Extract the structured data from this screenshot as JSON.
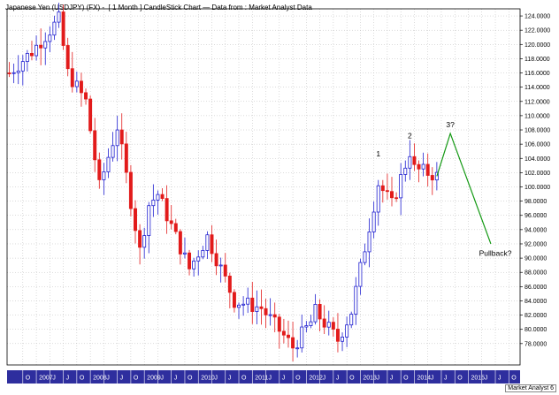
{
  "chart_data": {
    "type": "candlestick",
    "title": "Japanese Yen (USDJPY) (FX) -  [ 1 Month ] CandleStick Chart — Data from : Market Analyst Data",
    "brand": "Market Analyst 6",
    "ylim": [
      75.0,
      125.0
    ],
    "y_ticks": [
      "78.0000",
      "80.0000",
      "82.0000",
      "84.0000",
      "86.0000",
      "88.0000",
      "90.0000",
      "92.0000",
      "94.0000",
      "96.0000",
      "98.0000",
      "100.0000",
      "102.0000",
      "104.0000",
      "106.0000",
      "108.0000",
      "110.0000",
      "112.0000",
      "114.0000",
      "116.0000",
      "118.0000",
      "120.0000",
      "122.0000",
      "124.0000"
    ],
    "x_start": "2006-07",
    "x_end": "2015-12",
    "x_ticks": [
      {
        "label": "O",
        "date": "2006-10"
      },
      {
        "label": "2007",
        "date": "2007-01"
      },
      {
        "label": "J",
        "date": "2007-04"
      },
      {
        "label": "J",
        "date": "2007-07"
      },
      {
        "label": "O",
        "date": "2007-10"
      },
      {
        "label": "2008",
        "date": "2008-01"
      },
      {
        "label": "J",
        "date": "2008-04"
      },
      {
        "label": "J",
        "date": "2008-07"
      },
      {
        "label": "O",
        "date": "2008-10"
      },
      {
        "label": "2009",
        "date": "2009-01"
      },
      {
        "label": "J",
        "date": "2009-04"
      },
      {
        "label": "J",
        "date": "2009-07"
      },
      {
        "label": "O",
        "date": "2009-10"
      },
      {
        "label": "2010",
        "date": "2010-01"
      },
      {
        "label": "J",
        "date": "2010-04"
      },
      {
        "label": "J",
        "date": "2010-07"
      },
      {
        "label": "O",
        "date": "2010-10"
      },
      {
        "label": "2011",
        "date": "2011-01"
      },
      {
        "label": "J",
        "date": "2011-04"
      },
      {
        "label": "J",
        "date": "2011-07"
      },
      {
        "label": "O",
        "date": "2011-10"
      },
      {
        "label": "2012",
        "date": "2012-01"
      },
      {
        "label": "J",
        "date": "2012-04"
      },
      {
        "label": "J",
        "date": "2012-07"
      },
      {
        "label": "O",
        "date": "2012-10"
      },
      {
        "label": "2013",
        "date": "2013-01"
      },
      {
        "label": "J",
        "date": "2013-04"
      },
      {
        "label": "J",
        "date": "2013-07"
      },
      {
        "label": "O",
        "date": "2013-10"
      },
      {
        "label": "2014",
        "date": "2014-01"
      },
      {
        "label": "J",
        "date": "2014-04"
      },
      {
        "label": "J",
        "date": "2014-07"
      },
      {
        "label": "O",
        "date": "2014-10"
      },
      {
        "label": "2015",
        "date": "2015-01"
      },
      {
        "label": "J",
        "date": "2015-04"
      },
      {
        "label": "J",
        "date": "2015-07"
      },
      {
        "label": "O",
        "date": "2015-10"
      }
    ],
    "anchors": [
      [
        "2006-07",
        116.0
      ],
      [
        "2006-12",
        119.0
      ],
      [
        "2007-06",
        123.5
      ],
      [
        "2007-08",
        116.0
      ],
      [
        "2007-12",
        112.0
      ],
      [
        "2008-03",
        100.0
      ],
      [
        "2008-07",
        108.5
      ],
      [
        "2008-12",
        91.0
      ],
      [
        "2009-02",
        97.5
      ],
      [
        "2009-04",
        99.0
      ],
      [
        "2009-11",
        88.5
      ],
      [
        "2010-03",
        93.0
      ],
      [
        "2010-09",
        84.0
      ],
      [
        "2011-03",
        83.0
      ],
      [
        "2011-10",
        77.5
      ],
      [
        "2012-02",
        81.0
      ],
      [
        "2012-03",
        82.5
      ],
      [
        "2012-08",
        78.5
      ],
      [
        "2012-11",
        82.5
      ],
      [
        "2013-05",
        100.5
      ],
      [
        "2013-08",
        97.5
      ],
      [
        "2013-12",
        105.0
      ],
      [
        "2014-01",
        102.5
      ],
      [
        "2014-05",
        101.8
      ],
      [
        "2014-06",
        101.5
      ]
    ],
    "annotations": [
      {
        "label": "1",
        "date": "2013-05",
        "value": 104.3
      },
      {
        "label": "2",
        "date": "2013-12",
        "value": 106.8
      },
      {
        "label": "3?",
        "date": "2014-09",
        "value": 108.4
      },
      {
        "label": "Pullback?",
        "date": "2015-07",
        "value": 90.3
      }
    ],
    "projection": [
      [
        "2014-06",
        101.5
      ],
      [
        "2014-09",
        107.5
      ],
      [
        "2015-06",
        92.0
      ]
    ],
    "colors": {
      "up": "#1f1fd0",
      "down": "#e21b1b",
      "projection": "#139913",
      "grid": "#b8b8b8",
      "axis_bg": "#2e2e9e"
    }
  }
}
